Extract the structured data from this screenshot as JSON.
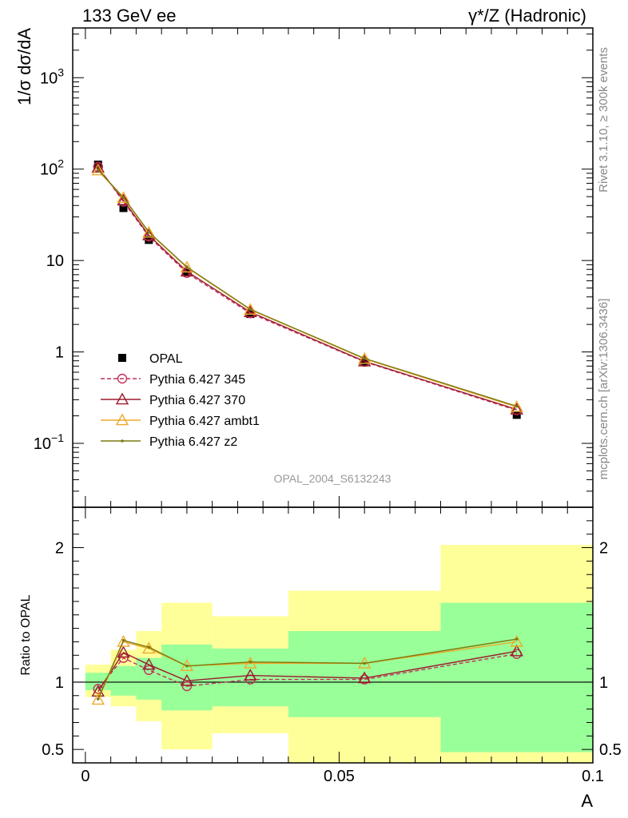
{
  "header": {
    "left": "133 GeV ee",
    "right": "γ*/Z (Hadronic)"
  },
  "side_labels": {
    "rivet": "Rivet 3.1.10, ≥ 300k events",
    "mcplots": "mcplots.cern.ch [arXiv:1306.3436]"
  },
  "analysis_tag": "OPAL_2004_S6132243",
  "colors": {
    "opal": "#000000",
    "p345": "#c1315d",
    "p370": "#9b1b2d",
    "ambt1": "#f0a92a",
    "z2": "#7c7a11",
    "band_outer": "#ffff99",
    "band_inner": "#99ff99"
  },
  "chart_data": [
    {
      "type": "scatter",
      "panel": "main",
      "ylabel": "1/σ dσ/dA",
      "yscale": "log",
      "ylim": [
        0.02,
        3500
      ],
      "xlim": [
        -0.0025,
        0.1
      ],
      "y_ticks": [
        {
          "value": 0.1,
          "base": "10",
          "exp": "−1"
        },
        {
          "value": 1,
          "label": "1"
        },
        {
          "value": 10,
          "label": "10"
        },
        {
          "value": 100,
          "base": "10",
          "exp": "2"
        },
        {
          "value": 1000,
          "base": "10",
          "exp": "3"
        }
      ],
      "bins": [
        0.0,
        0.005,
        0.01,
        0.015,
        0.025,
        0.04,
        0.07,
        0.1
      ],
      "series": [
        {
          "name": "OPAL",
          "key": "opal",
          "marker": "square",
          "x": [
            0.0025,
            0.0075,
            0.0125,
            0.02,
            0.0325,
            0.055,
            0.085
          ],
          "y": [
            112,
            37.5,
            16.8,
            7.5,
            2.6,
            0.77,
            0.205
          ]
        },
        {
          "name": "Pythia 6.427 345",
          "key": "p345",
          "marker": "circle",
          "dashed": true,
          "x": [
            0.0025,
            0.0075,
            0.0125,
            0.02,
            0.0325,
            0.055,
            0.085
          ],
          "y": [
            106,
            44,
            18.3,
            7.3,
            2.65,
            0.78,
            0.23
          ]
        },
        {
          "name": "Pythia 6.427 370",
          "key": "p370",
          "marker": "triangle",
          "dashed": false,
          "x": [
            0.0025,
            0.0075,
            0.0125,
            0.02,
            0.0325,
            0.055,
            0.085
          ],
          "y": [
            104,
            45.5,
            18.9,
            7.6,
            2.73,
            0.79,
            0.235
          ]
        },
        {
          "name": "Pythia 6.427 ambt1",
          "key": "ambt1",
          "marker": "triangle",
          "dashed": false,
          "x": [
            0.0025,
            0.0075,
            0.0125,
            0.02,
            0.0325,
            0.055,
            0.085
          ],
          "y": [
            97,
            48.5,
            20.2,
            8.4,
            2.9,
            0.84,
            0.25
          ]
        },
        {
          "name": "Pythia 6.427 z2",
          "key": "z2",
          "marker": "dot",
          "dashed": false,
          "x": [
            0.0025,
            0.0075,
            0.0125,
            0.02,
            0.0325,
            0.055,
            0.085
          ],
          "y": [
            98,
            49,
            20.5,
            8.5,
            2.93,
            0.85,
            0.255
          ]
        }
      ]
    },
    {
      "type": "scatter",
      "panel": "ratio",
      "ylabel": "Ratio to OPAL",
      "xlabel": "A",
      "ylim": [
        0.4,
        2.3
      ],
      "xlim": [
        -0.0025,
        0.1
      ],
      "x_ticks": [
        {
          "value": 0,
          "label": "0"
        },
        {
          "value": 0.05,
          "label": "0.05"
        },
        {
          "value": 0.1,
          "label": "0.1"
        }
      ],
      "y_ticks": [
        {
          "value": 0.5,
          "label": "0.5"
        },
        {
          "value": 1,
          "label": "1"
        },
        {
          "value": 2,
          "label": "2"
        }
      ],
      "reference_line": 1,
      "bands": [
        {
          "x0": 0.0,
          "x1": 0.005,
          "outer": [
            0.89,
            1.13
          ],
          "inner": [
            0.94,
            1.07
          ]
        },
        {
          "x0": 0.005,
          "x1": 0.01,
          "outer": [
            0.82,
            1.24
          ],
          "inner": [
            0.9,
            1.12
          ]
        },
        {
          "x0": 0.01,
          "x1": 0.015,
          "outer": [
            0.71,
            1.38
          ],
          "inner": [
            0.87,
            1.18
          ]
        },
        {
          "x0": 0.015,
          "x1": 0.025,
          "outer": [
            0.5,
            1.59
          ],
          "inner": [
            0.79,
            1.28
          ]
        },
        {
          "x0": 0.025,
          "x1": 0.04,
          "outer": [
            0.62,
            1.49
          ],
          "inner": [
            0.82,
            1.25
          ]
        },
        {
          "x0": 0.04,
          "x1": 0.07,
          "outer": [
            0.37,
            1.68
          ],
          "inner": [
            0.74,
            1.38
          ]
        },
        {
          "x0": 0.07,
          "x1": 0.1,
          "outer": [
            0.37,
            2.02
          ],
          "inner": [
            0.48,
            1.59
          ]
        }
      ],
      "series": [
        {
          "name": "Pythia 6.427 345",
          "key": "p345",
          "marker": "circle",
          "dashed": true,
          "x": [
            0.0025,
            0.0075,
            0.0125,
            0.02,
            0.0325,
            0.055,
            0.085
          ],
          "y": [
            0.95,
            1.18,
            1.09,
            0.97,
            1.02,
            1.02,
            1.21
          ]
        },
        {
          "name": "Pythia 6.427 370",
          "key": "p370",
          "marker": "triangle",
          "dashed": false,
          "x": [
            0.0025,
            0.0075,
            0.0125,
            0.02,
            0.0325,
            0.055,
            0.085
          ],
          "y": [
            0.93,
            1.22,
            1.13,
            1.01,
            1.05,
            1.03,
            1.23
          ]
        },
        {
          "name": "Pythia 6.427 ambt1",
          "key": "ambt1",
          "marker": "triangle",
          "dashed": false,
          "x": [
            0.0025,
            0.0075,
            0.0125,
            0.02,
            0.0325,
            0.055,
            0.085
          ],
          "y": [
            0.87,
            1.3,
            1.25,
            1.12,
            1.14,
            1.14,
            1.3
          ]
        },
        {
          "name": "Pythia 6.427 z2",
          "key": "z2",
          "marker": "dot",
          "dashed": false,
          "x": [
            0.0025,
            0.0075,
            0.0125,
            0.02,
            0.0325,
            0.055,
            0.085
          ],
          "y": [
            0.875,
            1.31,
            1.26,
            1.12,
            1.15,
            1.14,
            1.32
          ]
        }
      ]
    }
  ]
}
